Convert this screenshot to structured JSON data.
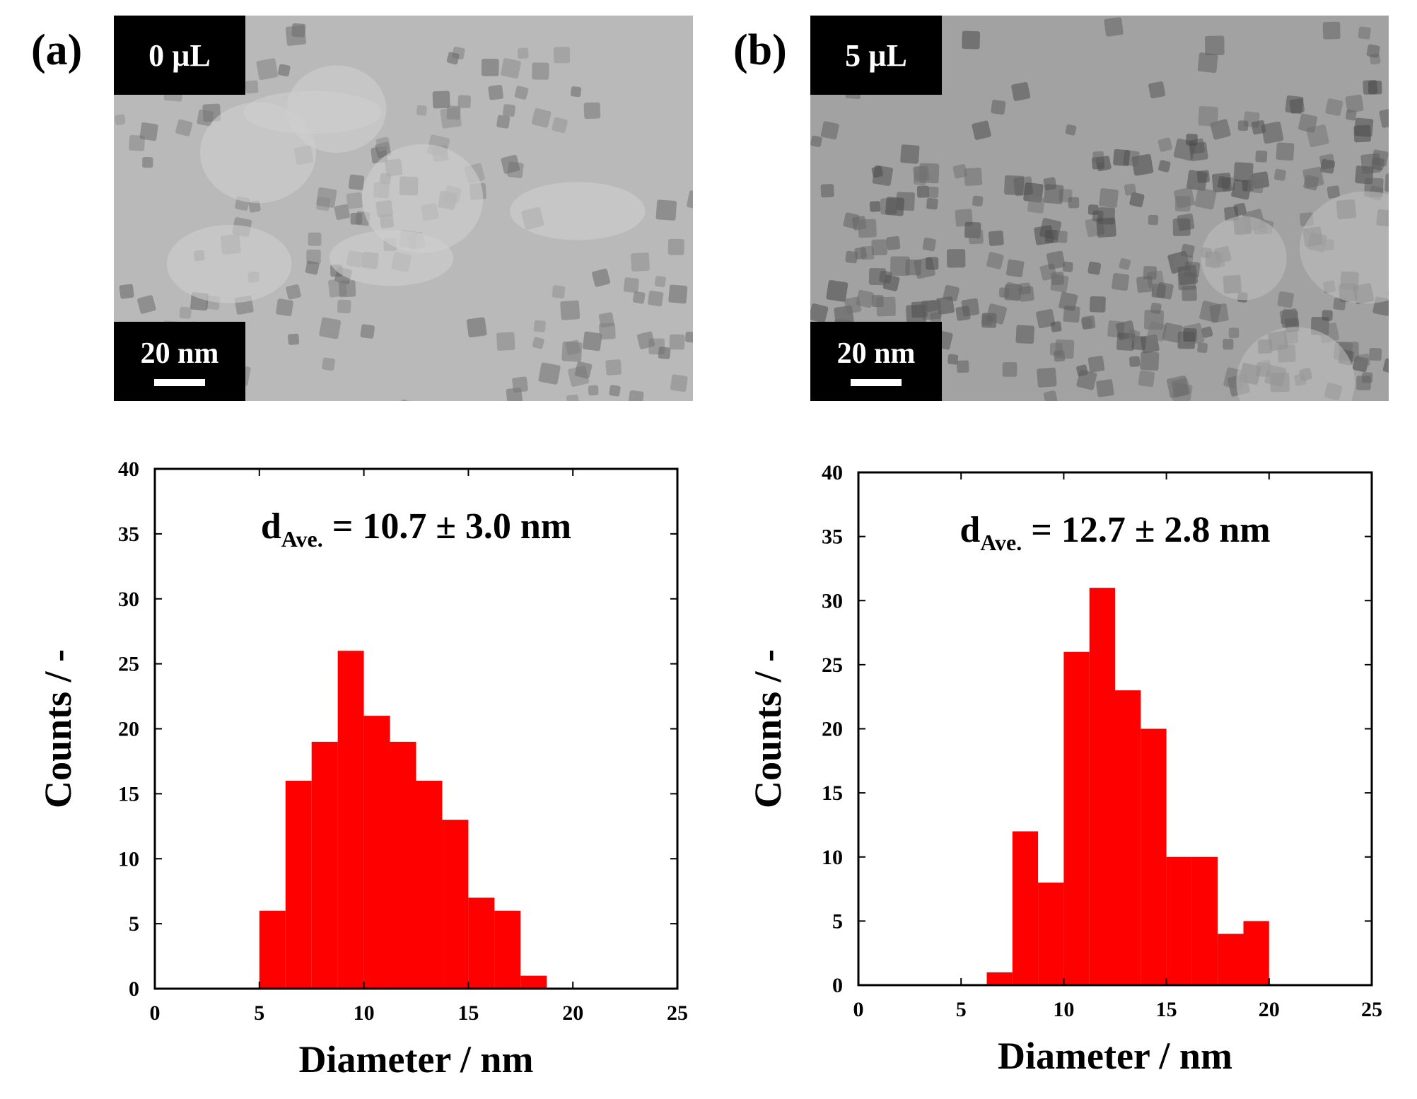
{
  "panels": [
    {
      "letter": "(a)",
      "image": {
        "volume_label": "0 µL",
        "scale_label": "20 nm",
        "tone": "light"
      }
    },
    {
      "letter": "(b)",
      "image": {
        "volume_label": "5 µL",
        "scale_label": "20 nm",
        "tone": "dark"
      }
    }
  ],
  "chart_data": [
    {
      "type": "bar",
      "bin_edges": [
        5,
        6.25,
        7.5,
        8.75,
        10,
        11.25,
        12.5,
        13.75,
        15,
        16.25,
        17.5,
        18.75
      ],
      "values": [
        6,
        16,
        19,
        26,
        21,
        19,
        16,
        13,
        7,
        6,
        1
      ],
      "annotation_main": "d",
      "annotation_sub": "Ave.",
      "annotation_value": " = 10.7 ± 3.0 nm",
      "xlabel": "Diameter / nm",
      "ylabel": "Counts / -",
      "xlim": [
        0,
        25
      ],
      "ylim": [
        0,
        40
      ],
      "xticks": [
        0,
        5,
        10,
        15,
        20,
        25
      ],
      "yticks": [
        0,
        5,
        10,
        15,
        20,
        25,
        30,
        35,
        40
      ],
      "bar_color": "#ff0000",
      "grid": false
    },
    {
      "type": "bar",
      "bin_edges": [
        6.25,
        7.5,
        8.75,
        10,
        11.25,
        12.5,
        13.75,
        15,
        16.25,
        17.5,
        18.75,
        20
      ],
      "values": [
        1,
        12,
        8,
        26,
        31,
        23,
        20,
        10,
        10,
        4,
        5
      ],
      "annotation_main": "d",
      "annotation_sub": "Ave.",
      "annotation_value": " = 12.7 ± 2.8 nm",
      "xlabel": "Diameter / nm",
      "ylabel": "Counts / -",
      "xlim": [
        0,
        25
      ],
      "ylim": [
        0,
        40
      ],
      "xticks": [
        0,
        5,
        10,
        15,
        20,
        25
      ],
      "yticks": [
        0,
        5,
        10,
        15,
        20,
        25,
        30,
        35,
        40
      ],
      "bar_color": "#ff0000",
      "grid": false
    }
  ]
}
